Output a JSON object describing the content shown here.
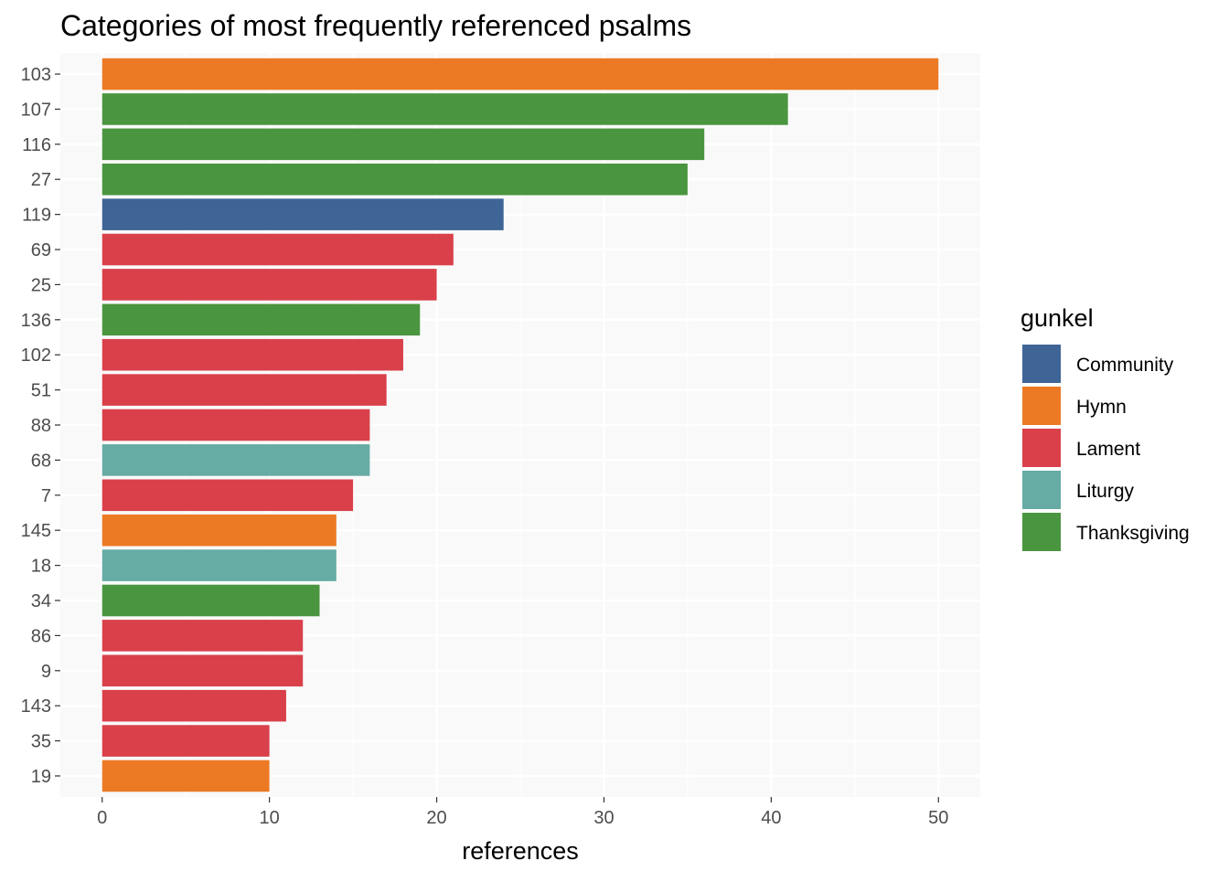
{
  "chart_data": {
    "type": "bar",
    "orientation": "horizontal",
    "title": "Categories of most frequently referenced psalms",
    "xlabel": "references",
    "ylabel": "",
    "xlim": [
      -2.5,
      52.5
    ],
    "x_ticks": [
      0,
      10,
      20,
      30,
      40,
      50
    ],
    "grid": true,
    "legend_position": "right",
    "legend": {
      "title": "gunkel",
      "entries": [
        {
          "name": "Community",
          "color": "#3F6496"
        },
        {
          "name": "Hymn",
          "color": "#EC7A24"
        },
        {
          "name": "Lament",
          "color": "#D9404A"
        },
        {
          "name": "Liturgy",
          "color": "#66ABA4"
        },
        {
          "name": "Thanksgiving",
          "color": "#4A953F"
        }
      ]
    },
    "categories": [
      "103",
      "107",
      "116",
      "27",
      "119",
      "69",
      "25",
      "136",
      "102",
      "51",
      "88",
      "68",
      "7",
      "145",
      "18",
      "34",
      "86",
      "9",
      "143",
      "35",
      "19"
    ],
    "values": [
      50,
      41,
      36,
      35,
      24,
      21,
      20,
      19,
      18,
      17,
      16,
      16,
      15,
      14,
      14,
      13,
      12,
      12,
      11,
      10,
      10
    ],
    "groups": [
      "Hymn",
      "Thanksgiving",
      "Thanksgiving",
      "Thanksgiving",
      "Community",
      "Lament",
      "Lament",
      "Thanksgiving",
      "Lament",
      "Lament",
      "Lament",
      "Liturgy",
      "Lament",
      "Hymn",
      "Liturgy",
      "Thanksgiving",
      "Lament",
      "Lament",
      "Lament",
      "Lament",
      "Hymn"
    ]
  }
}
